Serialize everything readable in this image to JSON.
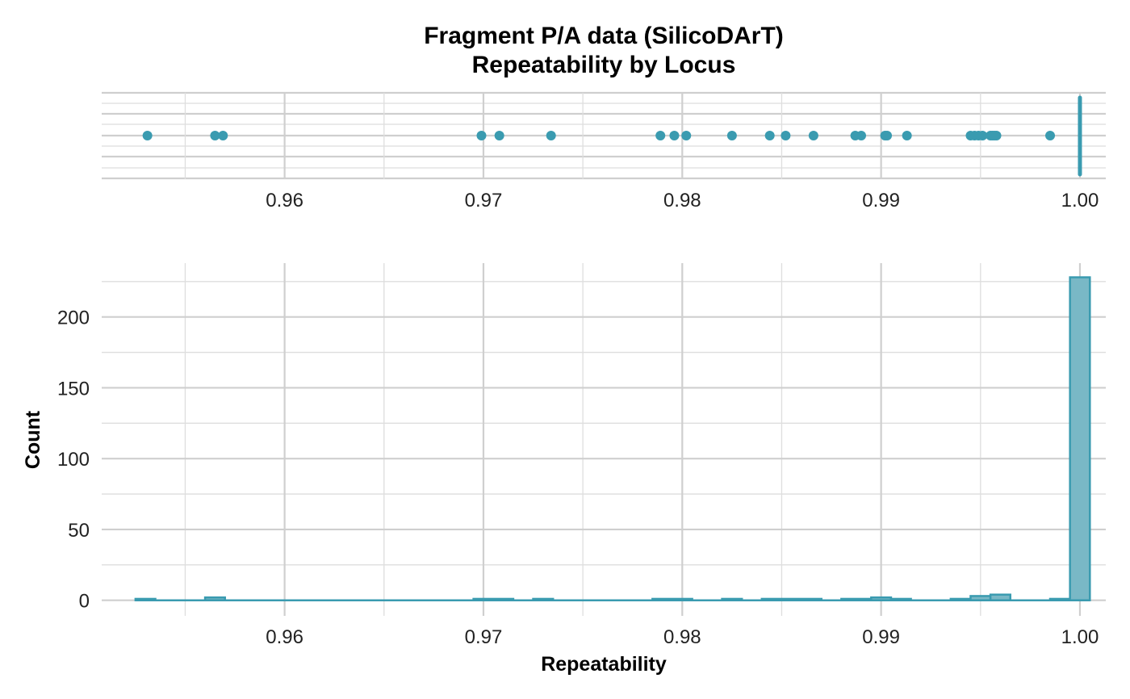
{
  "chart_data": [
    {
      "type": "scatter",
      "panel": "top",
      "title": "Fragment P/A data (SilicoDArT)",
      "subtitle": "Repeatability by Locus",
      "xlim": [
        0.9508,
        1.0013
      ],
      "x_ticks": [
        "0.96",
        "0.97",
        "0.98",
        "0.99",
        "1.00"
      ],
      "x_tick_values": [
        0.96,
        0.97,
        0.98,
        0.99,
        1.0
      ],
      "grid": true,
      "color": "#3a9bb0",
      "points_x": [
        0.9531,
        0.9565,
        0.9569,
        0.9699,
        0.9708,
        0.9734,
        0.9789,
        0.9796,
        0.9802,
        0.9825,
        0.9844,
        0.9852,
        0.9866,
        0.9887,
        0.989,
        0.9902,
        0.9903,
        0.9913,
        0.9945,
        0.9947,
        0.9949,
        0.9951,
        0.9955,
        0.9956,
        0.9957,
        0.9958,
        0.9985
      ],
      "strip_x": 1.0
    },
    {
      "type": "bar",
      "panel": "bottom",
      "xlabel": "Repeatability",
      "ylabel": "Count",
      "xlim": [
        0.9508,
        1.0013
      ],
      "ylim": [
        -11,
        238
      ],
      "x_ticks": [
        "0.96",
        "0.97",
        "0.98",
        "0.99",
        "1.00"
      ],
      "x_tick_values": [
        0.96,
        0.97,
        0.98,
        0.99,
        1.0
      ],
      "y_ticks": [
        "0",
        "50",
        "100",
        "150",
        "200"
      ],
      "y_tick_values": [
        0,
        50,
        100,
        150,
        200
      ],
      "grid": true,
      "fill": "#79b8c6",
      "stroke": "#3a9bb0",
      "bins": [
        {
          "x0": 0.9525,
          "x1": 0.9535,
          "count": 1
        },
        {
          "x0": 0.9535,
          "x1": 0.956,
          "count": 0
        },
        {
          "x0": 0.956,
          "x1": 0.957,
          "count": 2
        },
        {
          "x0": 0.957,
          "x1": 0.9695,
          "count": 0
        },
        {
          "x0": 0.9695,
          "x1": 0.9715,
          "count": 1
        },
        {
          "x0": 0.9715,
          "x1": 0.9725,
          "count": 0
        },
        {
          "x0": 0.9725,
          "x1": 0.9735,
          "count": 1
        },
        {
          "x0": 0.9735,
          "x1": 0.9785,
          "count": 0
        },
        {
          "x0": 0.9785,
          "x1": 0.9805,
          "count": 1
        },
        {
          "x0": 0.9805,
          "x1": 0.982,
          "count": 0
        },
        {
          "x0": 0.982,
          "x1": 0.983,
          "count": 1
        },
        {
          "x0": 0.983,
          "x1": 0.984,
          "count": 0
        },
        {
          "x0": 0.984,
          "x1": 0.987,
          "count": 1
        },
        {
          "x0": 0.987,
          "x1": 0.988,
          "count": 0
        },
        {
          "x0": 0.988,
          "x1": 0.9895,
          "count": 1
        },
        {
          "x0": 0.9895,
          "x1": 0.9905,
          "count": 2
        },
        {
          "x0": 0.9905,
          "x1": 0.9915,
          "count": 1
        },
        {
          "x0": 0.9915,
          "x1": 0.9935,
          "count": 0
        },
        {
          "x0": 0.9935,
          "x1": 0.9945,
          "count": 1
        },
        {
          "x0": 0.9945,
          "x1": 0.9955,
          "count": 3
        },
        {
          "x0": 0.9955,
          "x1": 0.9965,
          "count": 4
        },
        {
          "x0": 0.9965,
          "x1": 0.9985,
          "count": 0
        },
        {
          "x0": 0.9985,
          "x1": 0.9995,
          "count": 1
        },
        {
          "x0": 0.9995,
          "x1": 1.0005,
          "count": 228
        }
      ]
    }
  ]
}
